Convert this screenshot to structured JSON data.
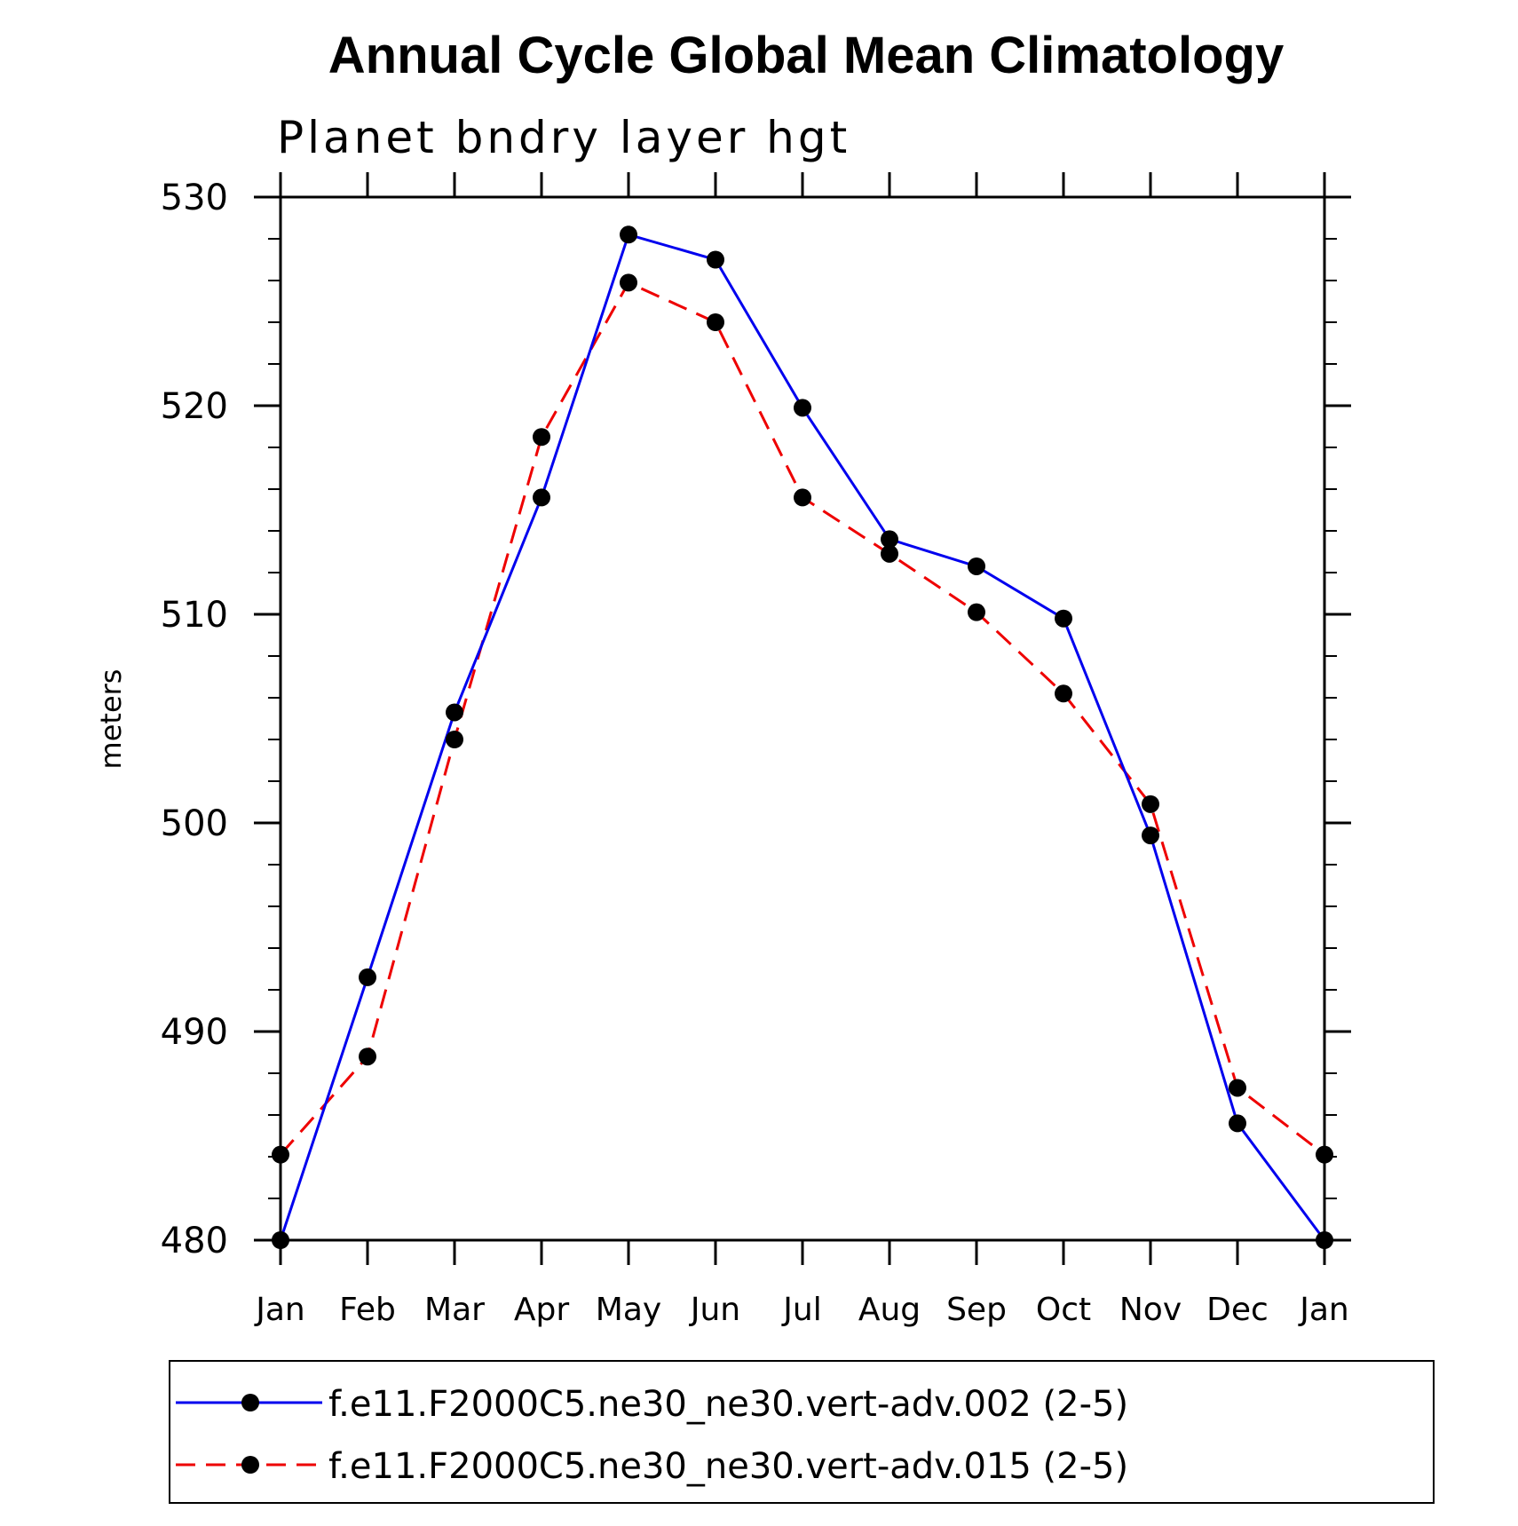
{
  "chart_data": {
    "type": "line",
    "title": "Annual Cycle Global Mean Climatology",
    "subtitle": "Planet bndry layer hgt",
    "xlabel": "",
    "ylabel": "meters",
    "categories": [
      "Jan",
      "Feb",
      "Mar",
      "Apr",
      "May",
      "Jun",
      "Jul",
      "Aug",
      "Sep",
      "Oct",
      "Nov",
      "Dec",
      "Jan"
    ],
    "ylim": [
      480,
      530
    ],
    "yticks": [
      480,
      490,
      500,
      510,
      520,
      530
    ],
    "yticks_minor_step": 2,
    "grid": false,
    "legend_position": "bottom",
    "series": [
      {
        "name": "f.e11.F2000C5.ne30_ne30.vert-adv.002 (2-5)",
        "color": "#0000ee",
        "line_style": "solid",
        "marker": "filled-circle",
        "values": [
          480.0,
          492.6,
          505.3,
          515.6,
          528.2,
          527.0,
          519.9,
          513.6,
          512.3,
          509.8,
          499.4,
          485.6,
          480.0
        ]
      },
      {
        "name": "f.e11.F2000C5.ne30_ne30.vert-adv.015 (2-5)",
        "color": "#ee0000",
        "line_style": "dashed",
        "marker": "filled-circle",
        "values": [
          484.1,
          488.8,
          504.0,
          518.5,
          525.9,
          524.0,
          515.6,
          512.9,
          510.1,
          506.2,
          500.9,
          487.3,
          484.1
        ]
      }
    ]
  }
}
